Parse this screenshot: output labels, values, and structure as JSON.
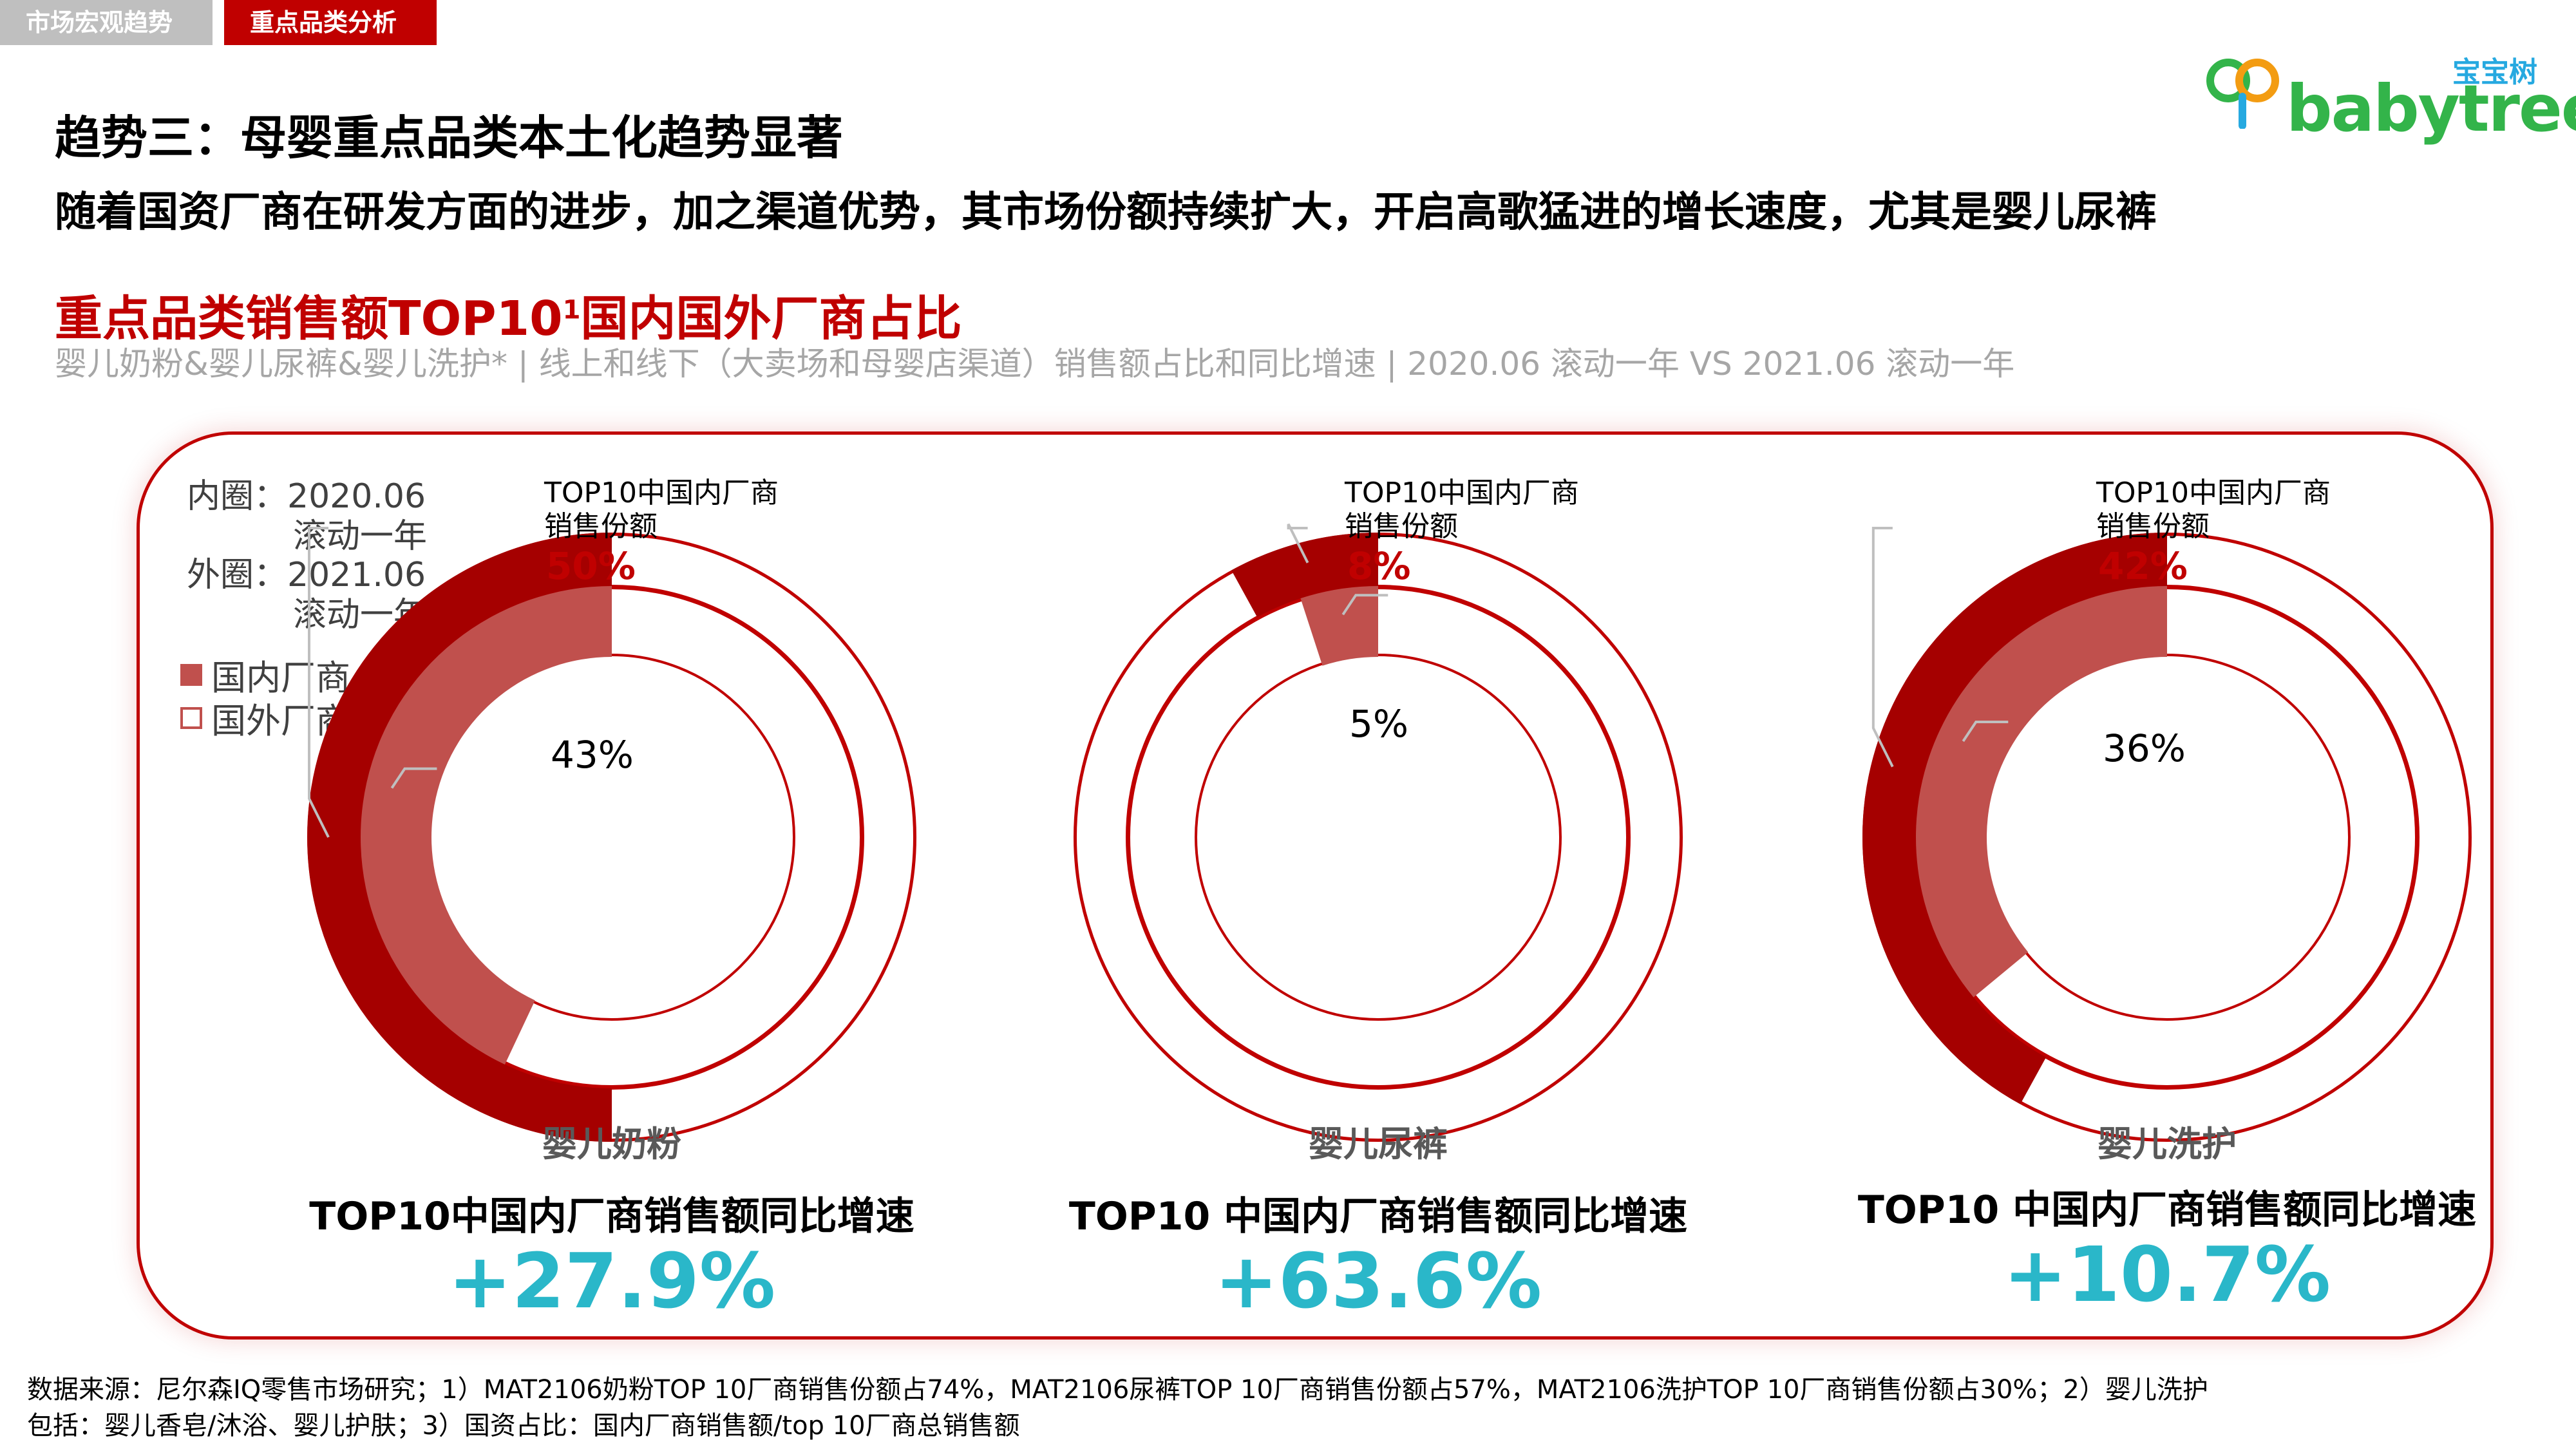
{
  "tabs": [
    {
      "label": "市场宏观趋势",
      "active": false
    },
    {
      "label": "重点品类分析",
      "active": true
    }
  ],
  "logo": {
    "cn": "宝宝树",
    "en": "babytree"
  },
  "title": "趋势三：母婴重点品类本土化趋势显著",
  "subtitle": "随着国资厂商在研发方面的进步，加之渠道优势，其市场份额持续扩大，开启高歌猛进的增长速度，尤其是婴儿尿裤",
  "section": {
    "title": "重点品类销售额TOP10",
    "sup": "1",
    "title_suffix": "国内国外厂商占比"
  },
  "description": "婴儿奶粉&婴儿尿裤&婴儿洗护* | 线上和线下（大卖场和母婴店渠道）销售额占比和同比增速 | 2020.06 滚动一年 VS 2021.06 滚动一年",
  "legend": {
    "inner_label": "内圈：2020.06",
    "inner_sub": "滚动一年",
    "outer_label": "外圈：2021.06",
    "outer_sub": "滚动一年",
    "items": [
      "国内厂商",
      "国外厂商"
    ]
  },
  "callout_label_1": "TOP10中国内厂商",
  "callout_label_2": "销售份额",
  "colors": {
    "domestic_outer": "#a50000",
    "domestic_inner": "#c0504d",
    "foreign": "#ffffff",
    "ring_border": "#c00000",
    "growth": "#2ab7c9"
  },
  "chart_data": [
    {
      "type": "pie",
      "subtype": "nested-donut",
      "category": "婴儿奶粉",
      "inner_ring": {
        "period": "2020.06 滚动一年",
        "domestic_share_pct": 43,
        "label": "43%"
      },
      "outer_ring": {
        "period": "2021.06 滚动一年",
        "domestic_share_pct": 50,
        "label": "50%"
      },
      "growth_label": "TOP10中国内厂商销售额同比增速",
      "growth_value": "+27.9%"
    },
    {
      "type": "pie",
      "subtype": "nested-donut",
      "category": "婴儿尿裤",
      "inner_ring": {
        "period": "2020.06 滚动一年",
        "domestic_share_pct": 5,
        "label": "5%"
      },
      "outer_ring": {
        "period": "2021.06 滚动一年",
        "domestic_share_pct": 8,
        "label": "8%"
      },
      "growth_label": "TOP10 中国内厂商销售额同比增速",
      "growth_value": "+63.6%"
    },
    {
      "type": "pie",
      "subtype": "nested-donut",
      "category": "婴儿洗护",
      "inner_ring": {
        "period": "2020.06 滚动一年",
        "domestic_share_pct": 36,
        "label": "36%"
      },
      "outer_ring": {
        "period": "2021.06 滚动一年",
        "domestic_share_pct": 42,
        "label": "42%"
      },
      "growth_label": "TOP10 中国内厂商销售额同比增速",
      "growth_value": "+10.7%"
    }
  ],
  "footnote": {
    "line1": "数据来源：尼尔森IQ零售市场研究；1）MAT2106奶粉TOP 10厂商销售份额占74%，MAT2106尿裤TOP 10厂商销售份额占57%，MAT2106洗护TOP 10厂商销售份额占30%；2）婴儿洗护",
    "line2": "包括：婴儿香皂/沐浴、婴儿护肤；3）国资占比：国内厂商销售额/top 10厂商总销售额"
  }
}
